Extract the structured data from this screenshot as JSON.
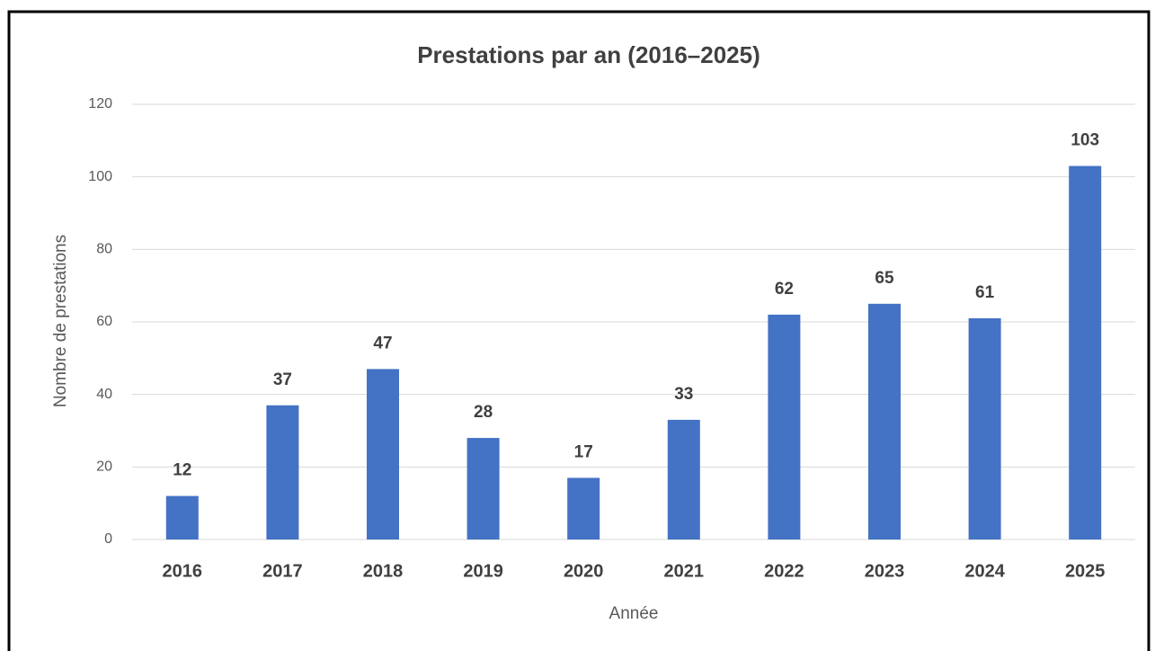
{
  "chart_data": {
    "type": "bar",
    "title": "Prestations par an (2016–2025)",
    "x_label": "Année",
    "y_label": "Nombre de prestations",
    "categories": [
      "2016",
      "2017",
      "2018",
      "2019",
      "2020",
      "2021",
      "2022",
      "2023",
      "2024",
      "2025"
    ],
    "values": [
      12,
      37,
      47,
      28,
      17,
      33,
      62,
      65,
      61,
      103
    ],
    "color": "#4472c4",
    "ylim": [
      0,
      120
    ],
    "yticks": [
      0,
      20,
      40,
      60,
      80,
      100,
      120
    ],
    "grid": true
  }
}
